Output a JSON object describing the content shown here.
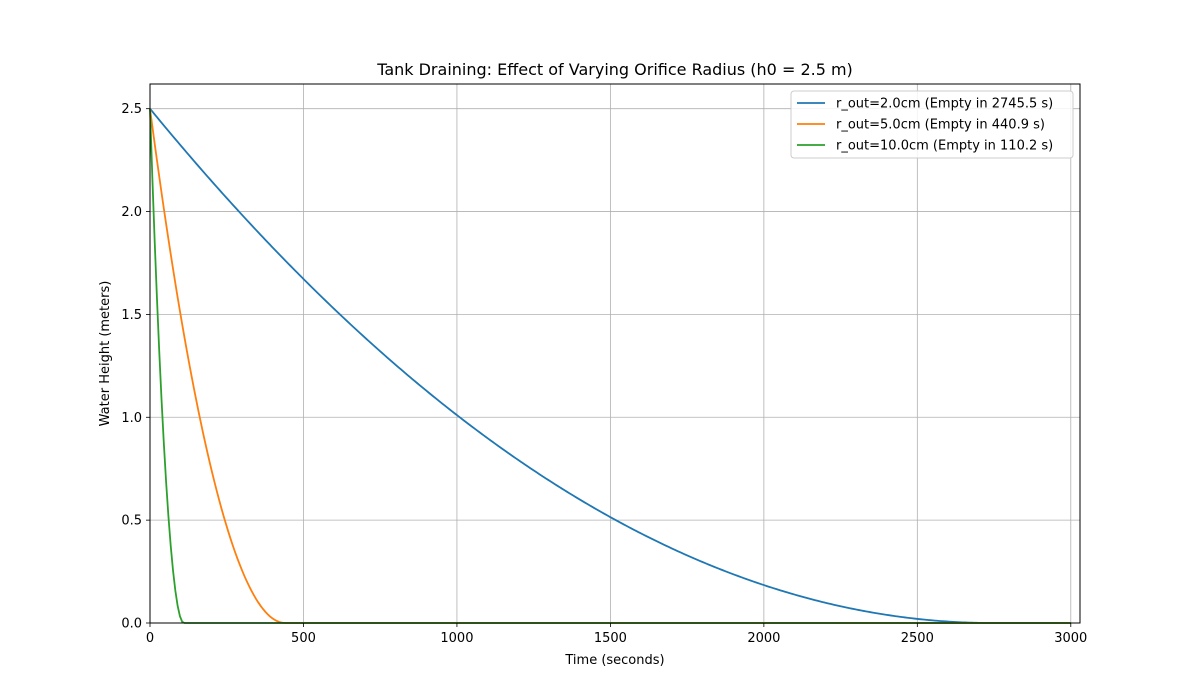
{
  "chart_data": {
    "type": "line",
    "title": "Tank Draining: Effect of Varying Orifice Radius (h0 = 2.5 m)",
    "xlabel": "Time (seconds)",
    "ylabel": "Water Height (meters)",
    "xlim": [
      0,
      3030
    ],
    "ylim": [
      0,
      2.62
    ],
    "xticks": [
      0,
      500,
      1000,
      1500,
      2000,
      2500,
      3000
    ],
    "yticks": [
      0.0,
      0.5,
      1.0,
      1.5,
      2.0,
      2.5
    ],
    "xtick_labels": [
      "0",
      "500",
      "1000",
      "1500",
      "2000",
      "2500",
      "3000"
    ],
    "ytick_labels": [
      "0.0",
      "0.5",
      "1.0",
      "1.5",
      "2.0",
      "2.5"
    ],
    "grid": true,
    "legend_position": "top-right",
    "h0": 2.5,
    "t_end": 3000,
    "series": [
      {
        "name": "r_out=2.0cm (Empty in 2745.5 s)",
        "color": "#1f77b4",
        "t_empty": 2745.5
      },
      {
        "name": "r_out=5.0cm (Empty in 440.9 s)",
        "color": "#ff7f0e",
        "t_empty": 440.9
      },
      {
        "name": "r_out=10.0cm (Empty in 110.2 s)",
        "color": "#2ca02c",
        "t_empty": 110.2
      }
    ]
  }
}
